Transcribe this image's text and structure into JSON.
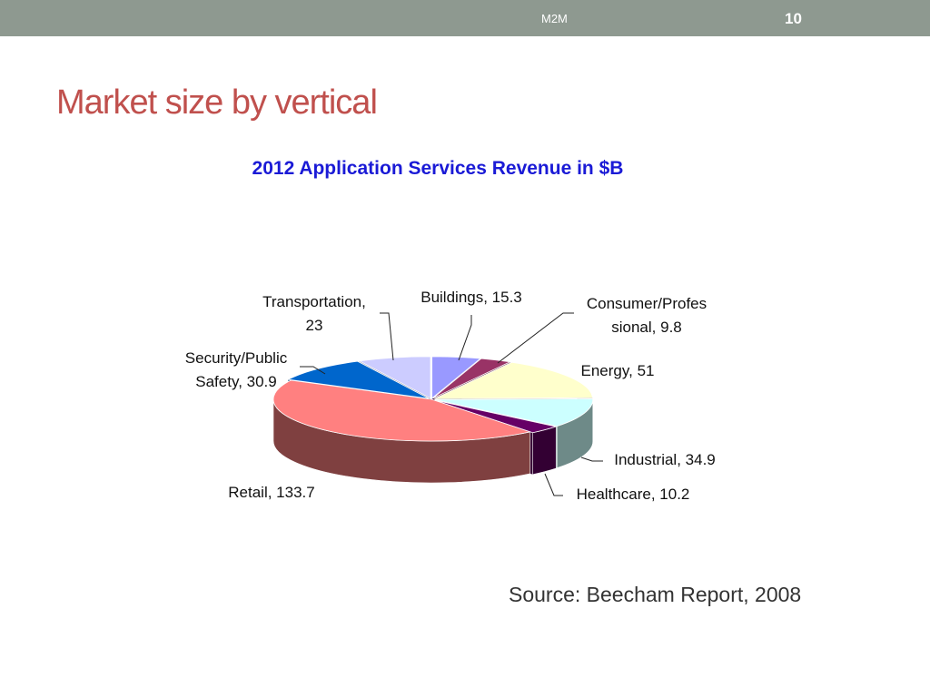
{
  "header": {
    "section_label": "M2M",
    "page_number": "10"
  },
  "slide": {
    "title": "Market size by vertical",
    "source": "Source: Beecham Report, 2008"
  },
  "chart_data": {
    "type": "pie",
    "style": "3d-exploded",
    "title": "2012 Application Services Revenue in $B",
    "slices": [
      {
        "name": "Buildings",
        "value": 15.3,
        "color": "#9999ff",
        "side_color": "#5a5aa8",
        "label_lines": [
          "Buildings, 15.3"
        ]
      },
      {
        "name": "Consumer/Professional",
        "value": 9.8,
        "color": "#993366",
        "side_color": "#5c1f3d",
        "label_lines": [
          "Consumer/Profes",
          "sional, 9.8"
        ]
      },
      {
        "name": "Energy",
        "value": 51,
        "color": "#ffffcc",
        "side_color": "#999979",
        "label_lines": [
          "Energy, 51"
        ]
      },
      {
        "name": "Industrial",
        "value": 34.9,
        "color": "#ccffff",
        "side_color": "#6e8a88",
        "label_lines": [
          "Industrial, 34.9"
        ]
      },
      {
        "name": "Healthcare",
        "value": 10.2,
        "color": "#660066",
        "side_color": "#330033",
        "label_lines": [
          "Healthcare, 10.2"
        ]
      },
      {
        "name": "Retail",
        "value": 133.7,
        "color": "#ff8080",
        "side_color": "#7f4040",
        "label_lines": [
          "Retail, 133.7"
        ]
      },
      {
        "name": "Security/Public Safety",
        "value": 30.9,
        "color": "#0066cc",
        "side_color": "#003d7a",
        "label_lines": [
          "Security/Public",
          "Safety, 30.9"
        ]
      },
      {
        "name": "Transportation",
        "value": 23,
        "color": "#ccccff",
        "side_color": "#7a7a99",
        "label_lines": [
          "Transportation,",
          "23"
        ]
      }
    ]
  }
}
